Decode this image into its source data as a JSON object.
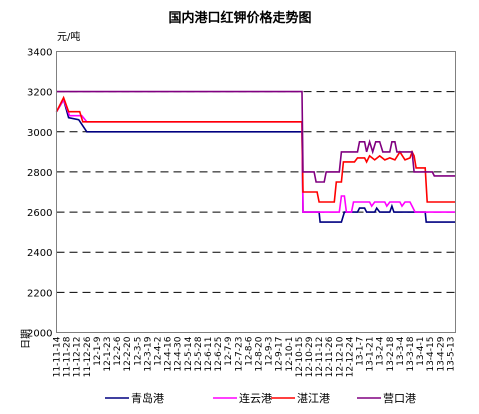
{
  "chart_data": {
    "type": "line",
    "title": "国内港口红钾价格走势图",
    "ylabel": "元/吨",
    "xlabel": "日期",
    "ylim": [
      2000,
      3400
    ],
    "yticks": [
      2000,
      2200,
      2400,
      2600,
      2800,
      3000,
      3200,
      3400
    ],
    "grid": true,
    "legend_position": "bottom",
    "x_tick_labels": [
      "11-11-14",
      "11-11-28",
      "11-12-12",
      "11-12-26",
      "12-1-9",
      "12-1-23",
      "12-2-6",
      "12-2-20",
      "12-3-5",
      "12-3-19",
      "12-4-2",
      "12-4-16",
      "12-4-30",
      "12-5-14",
      "12-5-28",
      "12-6-11",
      "12-6-25",
      "12-7-9",
      "12-7-23",
      "12-8-6",
      "12-8-20",
      "12-9-3",
      "12-9-17",
      "12-10-1",
      "12-10-15",
      "12-10-29",
      "12-11-12",
      "12-11-26",
      "12-12-10",
      "12-12-24",
      "13-1-7",
      "13-1-21",
      "13-2-4",
      "13-2-18",
      "13-3-4",
      "13-3-18",
      "13-4-1",
      "13-4-15",
      "13-4-29",
      "13-5-13"
    ],
    "series": [
      {
        "name": "青岛港",
        "color": "#000080",
        "points": [
          [
            0,
            3100
          ],
          [
            0.7,
            3160
          ],
          [
            1.2,
            3070
          ],
          [
            2.2,
            3060
          ],
          [
            3.0,
            3000
          ],
          [
            24.3,
            3000
          ],
          [
            24.4,
            2600
          ],
          [
            26.0,
            2600
          ],
          [
            26.1,
            2550
          ],
          [
            28.2,
            2550
          ],
          [
            28.5,
            2600
          ],
          [
            29.8,
            2600
          ],
          [
            30.0,
            2620
          ],
          [
            30.5,
            2620
          ],
          [
            30.7,
            2600
          ],
          [
            31.5,
            2600
          ],
          [
            31.7,
            2620
          ],
          [
            32.0,
            2600
          ],
          [
            33.0,
            2600
          ],
          [
            33.2,
            2630
          ],
          [
            33.4,
            2600
          ],
          [
            36.5,
            2600
          ],
          [
            36.6,
            2550
          ],
          [
            39.5,
            2550
          ]
        ]
      },
      {
        "name": "连云港",
        "color": "#ff00ff",
        "points": [
          [
            0,
            3100
          ],
          [
            0.7,
            3160
          ],
          [
            1.3,
            3080
          ],
          [
            2.5,
            3080
          ],
          [
            3.0,
            3050
          ],
          [
            24.3,
            3050
          ],
          [
            24.4,
            2600
          ],
          [
            28.0,
            2600
          ],
          [
            28.2,
            2680
          ],
          [
            28.5,
            2680
          ],
          [
            28.7,
            2600
          ],
          [
            29.2,
            2600
          ],
          [
            29.4,
            2650
          ],
          [
            31.0,
            2650
          ],
          [
            31.2,
            2630
          ],
          [
            31.5,
            2650
          ],
          [
            32.5,
            2650
          ],
          [
            32.7,
            2630
          ],
          [
            33.0,
            2650
          ],
          [
            34.0,
            2650
          ],
          [
            34.2,
            2630
          ],
          [
            34.5,
            2650
          ],
          [
            35.0,
            2650
          ],
          [
            35.2,
            2630
          ],
          [
            35.5,
            2600
          ],
          [
            39.5,
            2600
          ]
        ]
      },
      {
        "name": "湛江港",
        "color": "#ff0000",
        "points": [
          [
            0,
            3100
          ],
          [
            0.7,
            3170
          ],
          [
            1.2,
            3100
          ],
          [
            2.3,
            3100
          ],
          [
            2.6,
            3050
          ],
          [
            24.3,
            3050
          ],
          [
            24.4,
            2700
          ],
          [
            25.8,
            2700
          ],
          [
            26.0,
            2650
          ],
          [
            27.5,
            2650
          ],
          [
            27.7,
            2750
          ],
          [
            28.2,
            2750
          ],
          [
            28.4,
            2850
          ],
          [
            29.5,
            2850
          ],
          [
            29.8,
            2870
          ],
          [
            30.5,
            2870
          ],
          [
            30.7,
            2850
          ],
          [
            31.0,
            2880
          ],
          [
            31.5,
            2860
          ],
          [
            32.0,
            2880
          ],
          [
            32.5,
            2860
          ],
          [
            33.0,
            2870
          ],
          [
            33.5,
            2860
          ],
          [
            34.0,
            2900
          ],
          [
            34.5,
            2860
          ],
          [
            35.0,
            2870
          ],
          [
            35.2,
            2900
          ],
          [
            35.4,
            2880
          ],
          [
            35.6,
            2820
          ],
          [
            36.5,
            2820
          ],
          [
            36.7,
            2650
          ],
          [
            39.5,
            2650
          ]
        ]
      },
      {
        "name": "营口港",
        "color": "#800080",
        "points": [
          [
            0,
            3200
          ],
          [
            24.3,
            3200
          ],
          [
            24.4,
            2800
          ],
          [
            25.5,
            2800
          ],
          [
            25.7,
            2750
          ],
          [
            26.5,
            2750
          ],
          [
            26.7,
            2800
          ],
          [
            28.0,
            2800
          ],
          [
            28.2,
            2900
          ],
          [
            29.8,
            2900
          ],
          [
            30.0,
            2950
          ],
          [
            30.5,
            2950
          ],
          [
            30.7,
            2900
          ],
          [
            31.0,
            2950
          ],
          [
            31.3,
            2900
          ],
          [
            31.6,
            2950
          ],
          [
            32.0,
            2950
          ],
          [
            32.3,
            2900
          ],
          [
            33.0,
            2900
          ],
          [
            33.2,
            2950
          ],
          [
            33.5,
            2950
          ],
          [
            33.7,
            2900
          ],
          [
            35.2,
            2900
          ],
          [
            35.4,
            2800
          ],
          [
            37.2,
            2800
          ],
          [
            37.4,
            2780
          ],
          [
            39.5,
            2780
          ]
        ]
      }
    ]
  }
}
